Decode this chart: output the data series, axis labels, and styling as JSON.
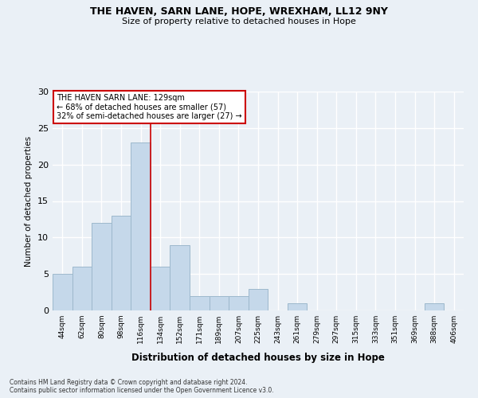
{
  "title1": "THE HAVEN, SARN LANE, HOPE, WREXHAM, LL12 9NY",
  "title2": "Size of property relative to detached houses in Hope",
  "xlabel": "Distribution of detached houses by size in Hope",
  "ylabel": "Number of detached properties",
  "bin_labels": [
    "44sqm",
    "62sqm",
    "80sqm",
    "98sqm",
    "116sqm",
    "134sqm",
    "152sqm",
    "171sqm",
    "189sqm",
    "207sqm",
    "225sqm",
    "243sqm",
    "261sqm",
    "279sqm",
    "297sqm",
    "315sqm",
    "333sqm",
    "351sqm",
    "369sqm",
    "388sqm",
    "406sqm"
  ],
  "bar_heights": [
    5,
    6,
    12,
    13,
    23,
    6,
    9,
    2,
    2,
    2,
    3,
    0,
    1,
    0,
    0,
    0,
    0,
    0,
    0,
    1,
    0
  ],
  "bar_color": "#c5d8ea",
  "bar_edge_color": "#9db8cc",
  "annotation_text1": "THE HAVEN SARN LANE: 129sqm",
  "annotation_text2": "← 68% of detached houses are smaller (57)",
  "annotation_text3": "32% of semi-detached houses are larger (27) →",
  "ylim": [
    0,
    30
  ],
  "yticks": [
    0,
    5,
    10,
    15,
    20,
    25,
    30
  ],
  "vline_x": 4.5,
  "footer_line1": "Contains HM Land Registry data © Crown copyright and database right 2024.",
  "footer_line2": "Contains public sector information licensed under the Open Government Licence v3.0.",
  "bg_color": "#eaf0f6",
  "grid_color": "#ffffff",
  "annotation_box_color": "#ffffff",
  "annotation_box_edge": "#cc0000",
  "vline_color": "#cc0000"
}
